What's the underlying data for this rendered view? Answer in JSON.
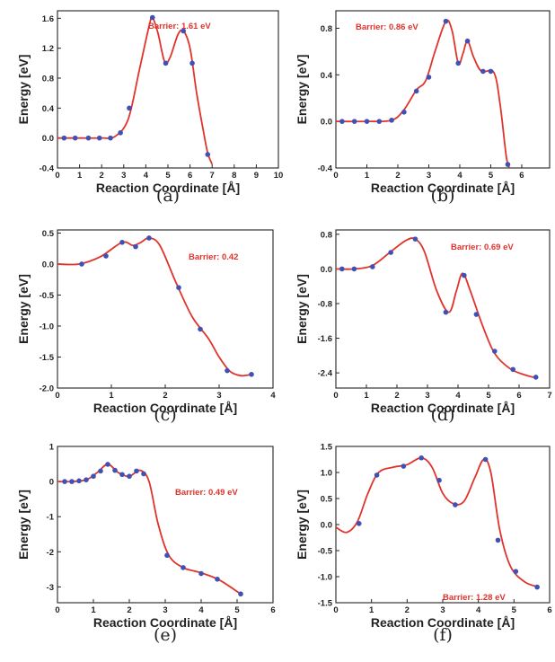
{
  "figure": {
    "panels": [
      {
        "label": "(a)",
        "annotation": "Barrier: 1.61 eV",
        "xlabel": "Reaction Coordinate [Å]",
        "ylabel": "Energy [eV]"
      },
      {
        "label": "(b)",
        "annotation": "Barrier: 0.86 eV",
        "xlabel": "Reaction Coordinate [Å]",
        "ylabel": "Energy [eV]"
      },
      {
        "label": "(c)",
        "annotation": "Barrier: 0.42",
        "xlabel": "Reaction Coordinate [Å]",
        "ylabel": "Energy [eV]"
      },
      {
        "label": "(d)",
        "annotation": "Barrier: 0.69 eV",
        "xlabel": "Reaction Coordinate [Å]",
        "ylabel": "Energy [eV]"
      },
      {
        "label": "(e)",
        "annotation": "Barrier: 0.49 eV",
        "xlabel": "Reaction Coordinate [Å]",
        "ylabel": "Energy [eV]"
      },
      {
        "label": "(f)",
        "annotation": "Barrier: 1.28 eV",
        "xlabel": "Reaction Coordinate [Å]",
        "ylabel": "Energy [eV]"
      }
    ]
  },
  "chart_data": [
    {
      "type": "line",
      "panel": "(a)",
      "xlabel": "Reaction Coordinate [Å]",
      "ylabel": "Energy [eV]",
      "xlim": [
        0,
        10
      ],
      "ylim": [
        -0.4,
        1.7
      ],
      "xticks": [
        "0",
        "1",
        "2",
        "3",
        "4",
        "5",
        "6",
        "7",
        "8",
        "9",
        "10"
      ],
      "yticks": [
        "-0.4",
        "0.0",
        "0.4",
        "0.8",
        "1.2",
        "1.6"
      ],
      "ytick_values": [
        -0.4,
        0.0,
        0.4,
        0.8,
        1.2,
        1.6
      ],
      "xtick_values": [
        0,
        1,
        2,
        3,
        4,
        5,
        6,
        7,
        8,
        9,
        10
      ],
      "annotation": "Barrier: 1.61 eV",
      "line_color": "#e0332b",
      "marker_color": "#3f51b5",
      "curve": [
        [
          0,
          0
        ],
        [
          1,
          0
        ],
        [
          2,
          0
        ],
        [
          2.6,
          0.02
        ],
        [
          3.2,
          0.25
        ],
        [
          3.7,
          0.9
        ],
        [
          4.15,
          1.5
        ],
        [
          4.3,
          1.61
        ],
        [
          4.55,
          1.4
        ],
        [
          4.85,
          1.02
        ],
        [
          5.1,
          1.08
        ],
        [
          5.45,
          1.38
        ],
        [
          5.7,
          1.43
        ],
        [
          6.0,
          1.2
        ],
        [
          6.3,
          0.6
        ],
        [
          6.6,
          0.1
        ],
        [
          6.8,
          -0.2
        ],
        [
          7.0,
          -0.35
        ]
      ],
      "points": [
        [
          0.3,
          0
        ],
        [
          0.8,
          0
        ],
        [
          1.4,
          0
        ],
        [
          1.9,
          0
        ],
        [
          2.4,
          0
        ],
        [
          2.85,
          0.07
        ],
        [
          3.25,
          0.4
        ],
        [
          4.3,
          1.61
        ],
        [
          4.9,
          1.0
        ],
        [
          5.7,
          1.43
        ],
        [
          6.1,
          1.0
        ],
        [
          6.8,
          -0.22
        ]
      ]
    },
    {
      "type": "line",
      "panel": "(b)",
      "xlabel": "Reaction Coordinate [Å]",
      "ylabel": "Energy [eV]",
      "xlim": [
        0,
        6.9
      ],
      "ylim": [
        -0.4,
        0.95
      ],
      "xticks": [
        "0",
        "1",
        "2",
        "3",
        "4",
        "5",
        "6"
      ],
      "yticks": [
        "-0.4",
        "0.0",
        "0.4",
        "0.8"
      ],
      "ytick_values": [
        -0.4,
        0.0,
        0.4,
        0.8
      ],
      "xtick_values": [
        0,
        1,
        2,
        3,
        4,
        5,
        6
      ],
      "annotation": "Barrier: 0.86 eV",
      "line_color": "#e0332b",
      "marker_color": "#3f51b5",
      "curve": [
        [
          0,
          0
        ],
        [
          1,
          0
        ],
        [
          1.8,
          0.01
        ],
        [
          2.2,
          0.1
        ],
        [
          2.6,
          0.27
        ],
        [
          2.9,
          0.35
        ],
        [
          3.2,
          0.6
        ],
        [
          3.55,
          0.86
        ],
        [
          3.75,
          0.78
        ],
        [
          3.95,
          0.5
        ],
        [
          4.1,
          0.58
        ],
        [
          4.25,
          0.69
        ],
        [
          4.45,
          0.55
        ],
        [
          4.7,
          0.43
        ],
        [
          5.1,
          0.42
        ],
        [
          5.3,
          0.15
        ],
        [
          5.5,
          -0.3
        ],
        [
          5.6,
          -0.4
        ]
      ],
      "points": [
        [
          0.2,
          0
        ],
        [
          0.6,
          0
        ],
        [
          1.0,
          0
        ],
        [
          1.4,
          0
        ],
        [
          1.8,
          0.01
        ],
        [
          2.2,
          0.08
        ],
        [
          2.6,
          0.26
        ],
        [
          3.0,
          0.38
        ],
        [
          3.55,
          0.86
        ],
        [
          3.95,
          0.5
        ],
        [
          4.25,
          0.69
        ],
        [
          4.75,
          0.43
        ],
        [
          5.0,
          0.43
        ],
        [
          5.55,
          -0.37
        ]
      ]
    },
    {
      "type": "line",
      "panel": "(c)",
      "xlabel": "Reaction Coordinate [Å]",
      "ylabel": "Energy [eV]",
      "xlim": [
        0,
        4
      ],
      "ylim": [
        -2.0,
        0.55
      ],
      "xticks": [
        "0",
        "1",
        "2",
        "3",
        "4"
      ],
      "yticks": [
        "-2.0",
        "-1.5",
        "-1.0",
        "-0.5",
        "0.0",
        "0.5"
      ],
      "ytick_values": [
        -2.0,
        -1.5,
        -1.0,
        -0.5,
        0.0,
        0.5
      ],
      "xtick_values": [
        0,
        1,
        2,
        3,
        4
      ],
      "annotation": "Barrier: 0.42",
      "line_color": "#e0332b",
      "marker_color": "#3f51b5",
      "curve": [
        [
          0,
          0
        ],
        [
          0.4,
          0
        ],
        [
          0.8,
          0.12
        ],
        [
          1.2,
          0.35
        ],
        [
          1.4,
          0.3
        ],
        [
          1.55,
          0.35
        ],
        [
          1.7,
          0.42
        ],
        [
          1.9,
          0.3
        ],
        [
          2.2,
          -0.3
        ],
        [
          2.5,
          -0.85
        ],
        [
          2.8,
          -1.2
        ],
        [
          3.0,
          -1.5
        ],
        [
          3.2,
          -1.73
        ],
        [
          3.4,
          -1.8
        ],
        [
          3.6,
          -1.78
        ]
      ],
      "points": [
        [
          0.45,
          0
        ],
        [
          0.9,
          0.13
        ],
        [
          1.2,
          0.35
        ],
        [
          1.45,
          0.28
        ],
        [
          1.7,
          0.42
        ],
        [
          2.25,
          -0.38
        ],
        [
          2.65,
          -1.05
        ],
        [
          3.15,
          -1.72
        ],
        [
          3.6,
          -1.78
        ]
      ]
    },
    {
      "type": "line",
      "panel": "(d)",
      "xlabel": "Reaction Coordinate [Å]",
      "ylabel": "Energy [eV]",
      "xlim": [
        0,
        7
      ],
      "ylim": [
        -2.75,
        0.9
      ],
      "xticks": [
        "0",
        "1",
        "2",
        "3",
        "4",
        "5",
        "6",
        "7"
      ],
      "yticks": [
        "-2.4",
        "-1.6",
        "-0.8",
        "0.0",
        "0.8"
      ],
      "ytick_values": [
        -2.4,
        -1.6,
        -0.8,
        0.0,
        0.8
      ],
      "xtick_values": [
        0,
        1,
        2,
        3,
        4,
        5,
        6,
        7
      ],
      "annotation": "Barrier: 0.69 eV",
      "line_color": "#e0332b",
      "marker_color": "#3f51b5",
      "curve": [
        [
          0,
          0
        ],
        [
          0.6,
          0
        ],
        [
          1.2,
          0.08
        ],
        [
          1.8,
          0.4
        ],
        [
          2.3,
          0.66
        ],
        [
          2.6,
          0.69
        ],
        [
          2.9,
          0.4
        ],
        [
          3.3,
          -0.5
        ],
        [
          3.7,
          -1.0
        ],
        [
          3.95,
          -0.5
        ],
        [
          4.15,
          -0.1
        ],
        [
          4.4,
          -0.5
        ],
        [
          4.8,
          -1.3
        ],
        [
          5.2,
          -1.95
        ],
        [
          5.7,
          -2.3
        ],
        [
          6.2,
          -2.45
        ],
        [
          6.6,
          -2.52
        ]
      ],
      "points": [
        [
          0.2,
          0
        ],
        [
          0.6,
          0
        ],
        [
          1.2,
          0.05
        ],
        [
          1.8,
          0.38
        ],
        [
          2.6,
          0.69
        ],
        [
          3.6,
          -1.0
        ],
        [
          4.2,
          -0.15
        ],
        [
          4.6,
          -1.05
        ],
        [
          5.2,
          -1.9
        ],
        [
          5.8,
          -2.32
        ],
        [
          6.55,
          -2.5
        ]
      ]
    },
    {
      "type": "line",
      "panel": "(e)",
      "xlabel": "Reaction Coordinate [Å]",
      "ylabel": "Energy [eV]",
      "xlim": [
        0,
        6
      ],
      "ylim": [
        -3.45,
        1.0
      ],
      "xticks": [
        "0",
        "1",
        "2",
        "3",
        "4",
        "5",
        "6"
      ],
      "yticks": [
        "-3",
        "-2",
        "-1",
        "0",
        "1"
      ],
      "ytick_values": [
        -3,
        -2,
        -1,
        0,
        1
      ],
      "xtick_values": [
        0,
        1,
        2,
        3,
        4,
        5,
        6
      ],
      "annotation": "Barrier: 0.49 eV",
      "line_color": "#e0332b",
      "marker_color": "#3f51b5",
      "curve": [
        [
          0,
          0
        ],
        [
          0.4,
          0
        ],
        [
          0.8,
          0.05
        ],
        [
          1.1,
          0.25
        ],
        [
          1.4,
          0.49
        ],
        [
          1.7,
          0.25
        ],
        [
          2.0,
          0.15
        ],
        [
          2.3,
          0.32
        ],
        [
          2.55,
          0.0
        ],
        [
          2.8,
          -1.2
        ],
        [
          3.1,
          -2.1
        ],
        [
          3.5,
          -2.45
        ],
        [
          4.0,
          -2.6
        ],
        [
          4.5,
          -2.8
        ],
        [
          5.1,
          -3.2
        ]
      ],
      "points": [
        [
          0.2,
          0
        ],
        [
          0.4,
          0
        ],
        [
          0.6,
          0.02
        ],
        [
          0.8,
          0.05
        ],
        [
          1.0,
          0.15
        ],
        [
          1.2,
          0.3
        ],
        [
          1.4,
          0.49
        ],
        [
          1.6,
          0.32
        ],
        [
          1.8,
          0.2
        ],
        [
          2.0,
          0.15
        ],
        [
          2.2,
          0.3
        ],
        [
          2.4,
          0.22
        ],
        [
          3.05,
          -2.1
        ],
        [
          3.5,
          -2.45
        ],
        [
          4.0,
          -2.62
        ],
        [
          4.45,
          -2.78
        ],
        [
          5.1,
          -3.2
        ]
      ]
    },
    {
      "type": "line",
      "panel": "(f)",
      "xlabel": "Reaction Coordinate [Å]",
      "ylabel": "Energy [eV]",
      "xlim": [
        0,
        6
      ],
      "ylim": [
        -1.5,
        1.5
      ],
      "xticks": [
        "0",
        "1",
        "2",
        "3",
        "4",
        "5",
        "6"
      ],
      "yticks": [
        "-1.5",
        "-1.0",
        "-0.5",
        "0.0",
        "0.5",
        "1.0",
        "1.5"
      ],
      "ytick_values": [
        -1.5,
        -1.0,
        -0.5,
        0.0,
        0.5,
        1.0,
        1.5
      ],
      "xtick_values": [
        0,
        1,
        2,
        3,
        4,
        5,
        6
      ],
      "annotation": "Barrier: 1.28 eV",
      "line_color": "#e0332b",
      "marker_color": "#3f51b5",
      "curve": [
        [
          0,
          -0.05
        ],
        [
          0.3,
          -0.15
        ],
        [
          0.6,
          0.05
        ],
        [
          0.9,
          0.6
        ],
        [
          1.2,
          1.0
        ],
        [
          1.6,
          1.1
        ],
        [
          2.0,
          1.15
        ],
        [
          2.4,
          1.28
        ],
        [
          2.7,
          1.1
        ],
        [
          3.0,
          0.6
        ],
        [
          3.3,
          0.4
        ],
        [
          3.6,
          0.45
        ],
        [
          3.9,
          0.9
        ],
        [
          4.15,
          1.25
        ],
        [
          4.35,
          1.0
        ],
        [
          4.6,
          -0.1
        ],
        [
          4.9,
          -0.8
        ],
        [
          5.3,
          -1.1
        ],
        [
          5.7,
          -1.2
        ]
      ],
      "points": [
        [
          0.65,
          0.02
        ],
        [
          1.15,
          0.95
        ],
        [
          1.9,
          1.12
        ],
        [
          2.4,
          1.28
        ],
        [
          2.9,
          0.85
        ],
        [
          3.35,
          0.38
        ],
        [
          4.2,
          1.25
        ],
        [
          4.55,
          -0.3
        ],
        [
          5.05,
          -0.9
        ],
        [
          5.65,
          -1.2
        ]
      ]
    }
  ]
}
